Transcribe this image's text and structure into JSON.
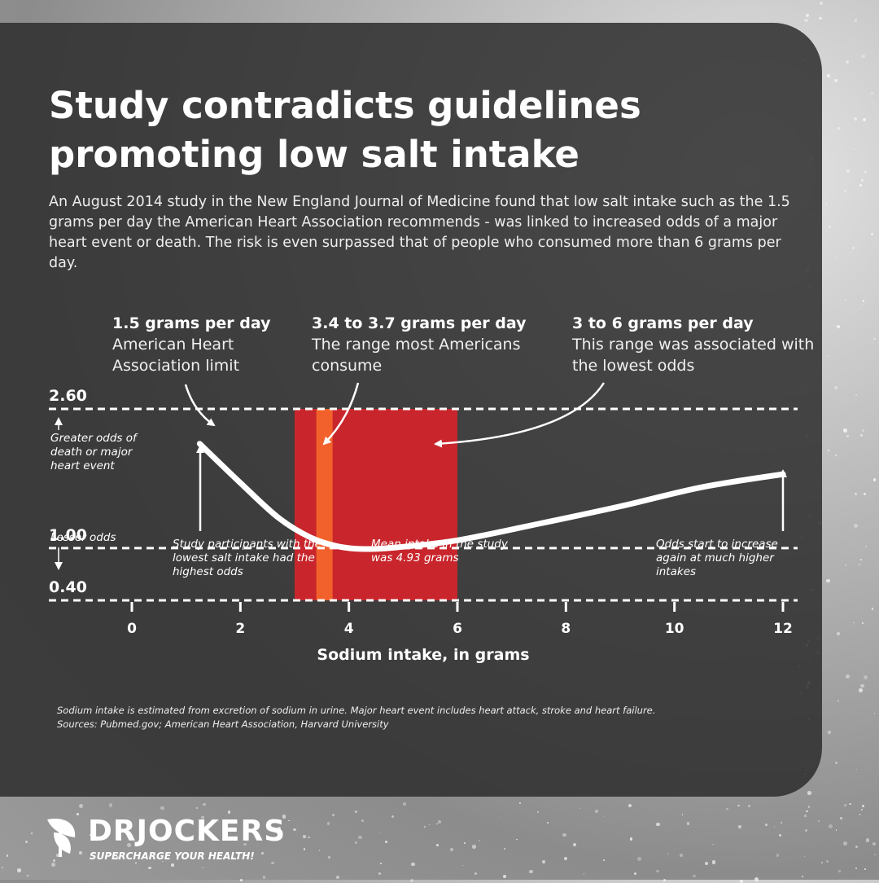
{
  "title": "Study contradicts guidelines promoting low salt intake",
  "intro": "An August 2014 study in the New England Journal of Medicine found that low salt intake such as the 1.5 grams per day the American Heart Association recommends - was linked to increased odds of a major heart event or death. The risk is even surpassed that of people who consumed more than 6 grams per day.",
  "callouts": [
    {
      "head": "1.5 grams per day",
      "body": "American Heart Association limit"
    },
    {
      "head": "3.4 to 3.7 grams per day",
      "body": "The range most Americans consume"
    },
    {
      "head": "3 to 6 grams per day",
      "body": "This range was associated with the lowest odds"
    }
  ],
  "notes": {
    "lowest": "Study participants with the lowest salt intake had the highest odds",
    "mean": "Mean intake in the study was 4.93 grams",
    "increase": "Odds start to increase again at much higher intakes"
  },
  "y_annotations": {
    "greater": "Greater odds of death or major heart event",
    "lesser": "Lesser odds"
  },
  "chart_data": {
    "type": "line",
    "xlabel": "Sodium intake, in grams",
    "ylabel": "",
    "xlim": [
      0,
      12
    ],
    "ylim": [
      0.4,
      2.6
    ],
    "x_ticks": [
      0,
      2,
      4,
      6,
      8,
      10,
      12
    ],
    "y_ticks": [
      {
        "value": 0.4,
        "label": "0.40"
      },
      {
        "value": 1.0,
        "label": "1.00"
      },
      {
        "value": 2.6,
        "label": "2.60"
      }
    ],
    "series": [
      {
        "x": [
          1.25,
          2.0,
          2.7,
          3.3,
          3.8,
          4.3,
          4.9,
          6.0,
          7.5,
          9.0,
          10.5,
          12.0
        ],
        "y": [
          2.2,
          1.75,
          1.35,
          1.12,
          1.02,
          0.99,
          1.01,
          1.09,
          1.28,
          1.48,
          1.7,
          1.85
        ]
      }
    ],
    "bands": [
      {
        "x0": 3.0,
        "x1": 6.0,
        "color": "#c8262c"
      },
      {
        "x0": 3.4,
        "x1": 3.7,
        "color": "#f2612b"
      }
    ],
    "grid": "dashed horizontal at 0.40, 1.00, 2.60"
  },
  "footnote": {
    "line1": "Sodium intake is estimated from excretion of sodium in urine. Major heart event includes heart attack, stroke and heart failure.",
    "line2": "Sources: Pubmed.gov; American Heart Association, Harvard University"
  },
  "logo": {
    "name": "DRJOCKERS",
    "tagline": "SUPERCHARGE YOUR HEALTH!"
  },
  "colors": {
    "band": "#c8262c",
    "band_highlight": "#f2612b",
    "curve": "#ffffff",
    "panel": "#2d2d2d"
  }
}
